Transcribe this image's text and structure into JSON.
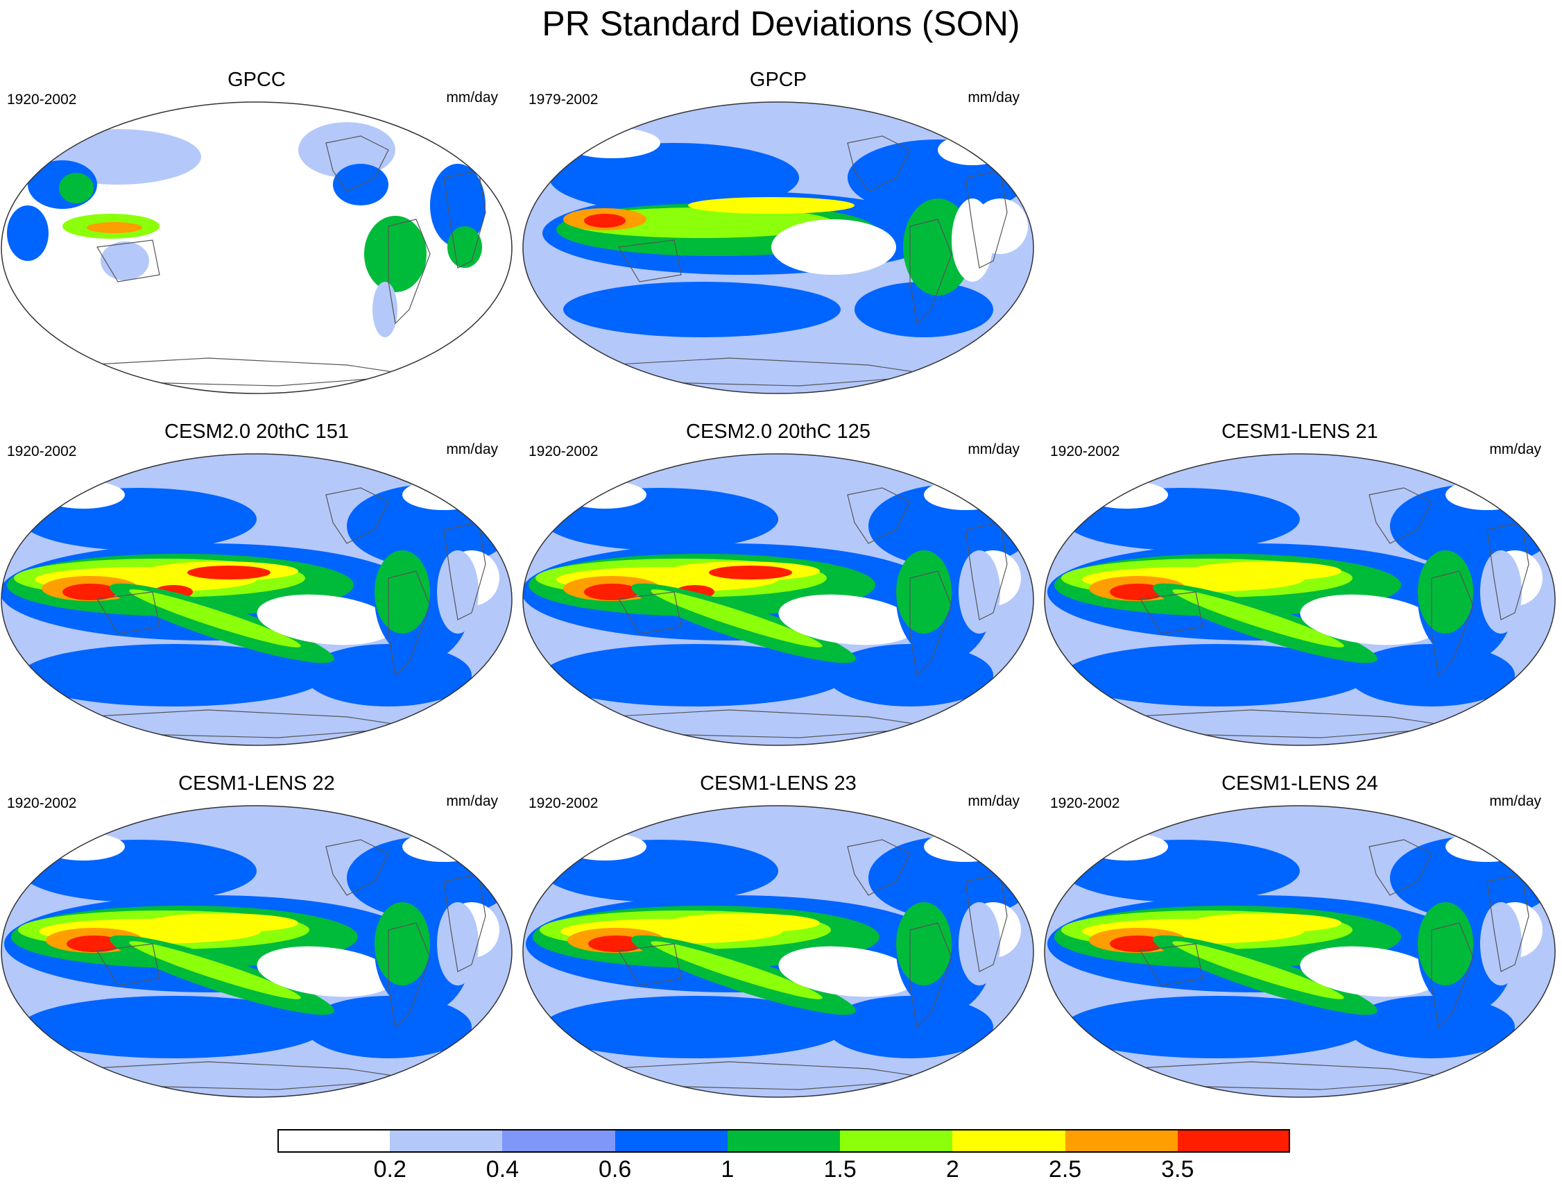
{
  "figure_title": "PR Standard Deviations (SON)",
  "panels": [
    {
      "title": "GPCC",
      "years": "1920-2002",
      "units": "mm/day",
      "type": "obs-land"
    },
    {
      "title": "GPCP",
      "years": "1979-2002",
      "units": "mm/day",
      "type": "obs-global"
    },
    {
      "title": "CESM2.0 20thC 151",
      "years": "1920-2002",
      "units": "mm/day",
      "type": "model"
    },
    {
      "title": "CESM2.0 20thC 125",
      "years": "1920-2002",
      "units": "mm/day",
      "type": "model"
    },
    {
      "title": "CESM1-LENS 21",
      "years": "1920-2002",
      "units": "mm/day",
      "type": "model"
    },
    {
      "title": "CESM1-LENS 22",
      "years": "1920-2002",
      "units": "mm/day",
      "type": "model"
    },
    {
      "title": "CESM1-LENS 23",
      "years": "1920-2002",
      "units": "mm/day",
      "type": "model"
    },
    {
      "title": "CESM1-LENS 24",
      "years": "1920-2002",
      "units": "mm/day",
      "type": "model"
    }
  ],
  "colorbar": {
    "labels": [
      "0.2",
      "0.4",
      "0.6",
      "1",
      "1.5",
      "2",
      "2.5",
      "3.5"
    ],
    "colors": [
      "#ffffff",
      "#b4c8fa",
      "#7f97f8",
      "#0064ff",
      "#00bb3a",
      "#8cff0a",
      "#ffff00",
      "#ff9e00",
      "#ff1e00"
    ]
  }
}
